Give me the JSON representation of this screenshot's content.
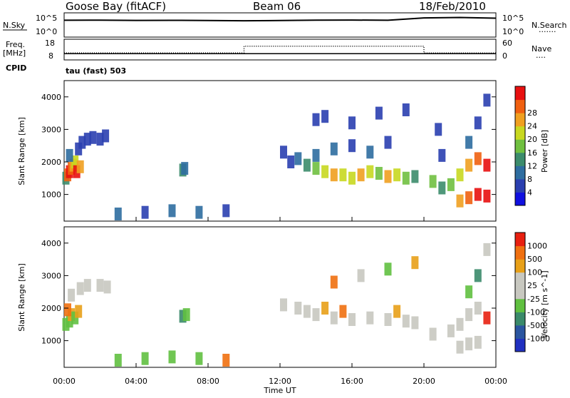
{
  "header": {
    "station": "Goose Bay (fitACF)",
    "beam": "Beam 06",
    "date": "18/Feb/2010"
  },
  "status_panel": {
    "nsky_label": "N.Sky",
    "nsky_ticks": [
      "10^5",
      "10^0"
    ],
    "nsearch_label": "N.Search",
    "nsearch_ticks": [
      "10^5",
      "10^0"
    ],
    "freq_label": "Freq.",
    "freq_unit": "[MHz]",
    "freq_ticks": [
      "18",
      "8"
    ],
    "nave_label": "Nave",
    "nave_ticks": [
      "60",
      "0"
    ],
    "cpid_label": "CPID",
    "cpid_value": "tau (fast) 503"
  },
  "colors": {
    "power_scale": [
      "#1010e0",
      "#2a3fb0",
      "#2e6da0",
      "#3c8c6c",
      "#70c040",
      "#c8d820",
      "#f0a020",
      "#f06010",
      "#e81010"
    ],
    "velocity_scale": [
      "#2030c0",
      "#2a55a0",
      "#3a8a6a",
      "#60c040",
      "#c8c8c0",
      "#c8c8c0",
      "#e8a018",
      "#f07010",
      "#e82010"
    ],
    "ground_scatter": "#c8c8c0"
  },
  "chart_data": [
    {
      "type": "line",
      "title": "N.Sky / N.Search",
      "y_scale": "log",
      "ylim": [
        1,
        100000
      ],
      "x": [
        "00:00",
        "02:00",
        "04:00",
        "06:00",
        "08:00",
        "10:00",
        "12:00",
        "14:00",
        "16:00",
        "18:00",
        "20:00",
        "22:00",
        "24:00"
      ],
      "series": [
        {
          "name": "N.Sky",
          "values": [
            3000,
            3200,
            2800,
            2900,
            2700,
            2300,
            2600,
            3100,
            3300,
            3000,
            9000,
            11000,
            8000
          ]
        }
      ]
    },
    {
      "type": "line",
      "title": "Freq. / Nave",
      "x": [
        "00:00",
        "10:00",
        "10:00",
        "20:00",
        "20:00",
        "24:00"
      ],
      "series": [
        {
          "name": "Freq.",
          "unit": "MHz",
          "ylim": [
            8,
            18
          ],
          "values": [
            11,
            11,
            11,
            11,
            11,
            11
          ]
        },
        {
          "name": "Nave",
          "ylim": [
            0,
            60
          ],
          "values": [
            20,
            20,
            40,
            40,
            20,
            20
          ]
        }
      ]
    },
    {
      "type": "heatmap",
      "ylabel": "Slant Range [km]",
      "yticks": [
        "1000",
        "2000",
        "3000",
        "4000"
      ],
      "ylim": [
        180,
        4500
      ],
      "xlim": [
        0,
        24
      ],
      "colorbar_label": "Power [dB]",
      "colorbar_ticks": [
        "4",
        "8",
        "12",
        "16",
        "20",
        "24",
        "28"
      ],
      "cell_format": [
        "hour",
        "range_km",
        "color_index"
      ],
      "cells": [
        [
          0.1,
          1500,
          3
        ],
        [
          0.2,
          1600,
          7
        ],
        [
          0.3,
          1700,
          8
        ],
        [
          0.4,
          1800,
          7
        ],
        [
          0.5,
          1900,
          6
        ],
        [
          0.6,
          2000,
          5
        ],
        [
          0.7,
          1700,
          8
        ],
        [
          0.9,
          1850,
          6
        ],
        [
          0.3,
          2200,
          2
        ],
        [
          0.8,
          2400,
          1
        ],
        [
          1.0,
          2600,
          1
        ],
        [
          1.3,
          2700,
          1
        ],
        [
          1.6,
          2750,
          1
        ],
        [
          2.0,
          2700,
          1
        ],
        [
          2.3,
          2800,
          1
        ],
        [
          6.6,
          1750,
          3
        ],
        [
          6.7,
          1800,
          2
        ],
        [
          3.0,
          400,
          2
        ],
        [
          4.5,
          450,
          1
        ],
        [
          6.0,
          500,
          2
        ],
        [
          7.5,
          450,
          2
        ],
        [
          9.0,
          500,
          1
        ],
        [
          12.2,
          2300,
          1
        ],
        [
          12.6,
          2000,
          1
        ],
        [
          13.0,
          2100,
          2
        ],
        [
          13.5,
          1900,
          3
        ],
        [
          14.0,
          1800,
          4
        ],
        [
          14.5,
          1700,
          5
        ],
        [
          15.0,
          1600,
          6
        ],
        [
          15.5,
          1600,
          5
        ],
        [
          16.0,
          1500,
          5
        ],
        [
          16.5,
          1600,
          6
        ],
        [
          17.0,
          1700,
          5
        ],
        [
          17.5,
          1650,
          4
        ],
        [
          18.0,
          1550,
          6
        ],
        [
          18.5,
          1600,
          5
        ],
        [
          19.0,
          1500,
          4
        ],
        [
          19.5,
          1550,
          3
        ],
        [
          14.0,
          2200,
          2
        ],
        [
          15.0,
          2400,
          2
        ],
        [
          16.0,
          2500,
          1
        ],
        [
          17.0,
          2300,
          2
        ],
        [
          18.0,
          2600,
          1
        ],
        [
          20.5,
          1400,
          4
        ],
        [
          21.0,
          1200,
          3
        ],
        [
          21.5,
          1300,
          4
        ],
        [
          22.0,
          1600,
          5
        ],
        [
          22.5,
          1900,
          6
        ],
        [
          23.0,
          2100,
          7
        ],
        [
          23.5,
          1900,
          8
        ],
        [
          22.0,
          800,
          6
        ],
        [
          22.5,
          900,
          7
        ],
        [
          23.0,
          1000,
          8
        ],
        [
          23.5,
          950,
          8
        ],
        [
          22.5,
          2600,
          2
        ],
        [
          23.0,
          3200,
          1
        ],
        [
          23.5,
          3900,
          1
        ],
        [
          14.0,
          3300,
          1
        ],
        [
          14.5,
          3400,
          1
        ],
        [
          16.0,
          3200,
          1
        ],
        [
          17.5,
          3500,
          1
        ],
        [
          19.0,
          3600,
          1
        ],
        [
          21.0,
          2200,
          1
        ],
        [
          20.8,
          3000,
          1
        ]
      ]
    },
    {
      "type": "heatmap",
      "ylabel": "Slant Range [km]",
      "yticks": [
        "1000",
        "2000",
        "3000",
        "4000"
      ],
      "ylim": [
        180,
        4500
      ],
      "xlim": [
        0,
        24
      ],
      "xlabel": "Time UT",
      "xticks": [
        "00:00",
        "04:00",
        "08:00",
        "12:00",
        "16:00",
        "20:00",
        "00:00"
      ],
      "colorbar_label": "Velocity [m s^-1]",
      "colorbar_ticks": [
        "1000",
        "500",
        "100",
        "25",
        "-25",
        "-100",
        "-500",
        "-1000"
      ],
      "cell_format": [
        "hour",
        "range_km",
        "color_index"
      ],
      "cells": [
        [
          0.1,
          1500,
          3
        ],
        [
          0.3,
          1600,
          3
        ],
        [
          0.4,
          1800,
          6
        ],
        [
          0.6,
          1700,
          3
        ],
        [
          0.8,
          1900,
          6
        ],
        [
          0.2,
          1950,
          7
        ],
        [
          0.4,
          2400,
          4
        ],
        [
          0.9,
          2600,
          4
        ],
        [
          1.3,
          2700,
          4
        ],
        [
          2.0,
          2700,
          4
        ],
        [
          2.4,
          2650,
          4
        ],
        [
          6.6,
          1750,
          2
        ],
        [
          6.8,
          1800,
          3
        ],
        [
          3.0,
          400,
          3
        ],
        [
          4.5,
          450,
          3
        ],
        [
          6.0,
          500,
          3
        ],
        [
          7.5,
          450,
          3
        ],
        [
          9.0,
          400,
          7
        ],
        [
          12.2,
          2100,
          4
        ],
        [
          13.0,
          2000,
          4
        ],
        [
          13.5,
          1900,
          4
        ],
        [
          14.0,
          1800,
          4
        ],
        [
          15.0,
          1700,
          4
        ],
        [
          16.0,
          1650,
          4
        ],
        [
          17.0,
          1700,
          4
        ],
        [
          18.0,
          1650,
          4
        ],
        [
          19.0,
          1600,
          4
        ],
        [
          19.5,
          1550,
          4
        ],
        [
          14.5,
          2000,
          6
        ],
        [
          15.5,
          1900,
          7
        ],
        [
          18.5,
          1900,
          6
        ],
        [
          20.5,
          1200,
          4
        ],
        [
          21.5,
          1300,
          4
        ],
        [
          22.0,
          1500,
          4
        ],
        [
          22.5,
          1800,
          4
        ],
        [
          23.0,
          2000,
          4
        ],
        [
          23.5,
          1700,
          8
        ],
        [
          22.0,
          800,
          4
        ],
        [
          22.5,
          900,
          4
        ],
        [
          23.0,
          950,
          4
        ],
        [
          22.5,
          2500,
          3
        ],
        [
          23.0,
          3000,
          2
        ],
        [
          23.5,
          3800,
          4
        ],
        [
          15.0,
          2800,
          7
        ],
        [
          16.5,
          3000,
          4
        ],
        [
          18.0,
          3200,
          3
        ],
        [
          19.5,
          3400,
          6
        ]
      ]
    }
  ]
}
